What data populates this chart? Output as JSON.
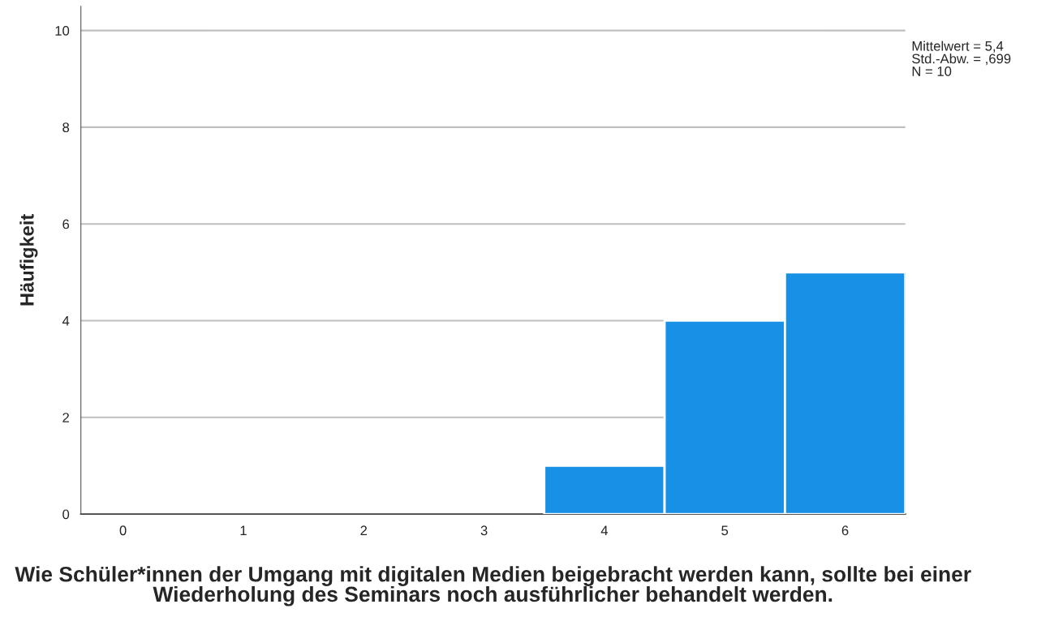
{
  "chart_data": {
    "type": "histogram",
    "bins": [
      3.5,
      4.5,
      5.5,
      6.5
    ],
    "values": [
      1,
      4,
      5
    ],
    "color": "#1790e6",
    "xlim": [
      -0.35,
      6.5
    ],
    "xticks": [
      0,
      1,
      2,
      3,
      4,
      5,
      6
    ],
    "ylim": [
      0,
      10.5
    ],
    "yticks": [
      0,
      2,
      4,
      6,
      8,
      10
    ],
    "xlabel": "Wie Schüler*innen der Umgang mit digitalen Medien beigebracht werden kann, sollte bei einer Wiederholung des Seminars noch ausführlicher behandelt werden.",
    "ylabel": "Häufigkeit",
    "annotations": [
      "Mittelwert = 5,4\nStd.-Abw. = ,699\nN = 10"
    ],
    "grid": "y"
  }
}
